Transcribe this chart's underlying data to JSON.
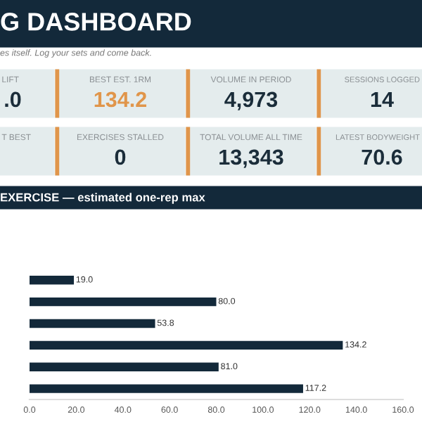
{
  "chart_data": [
    {
      "type": "other",
      "title": "G DASHBOARD",
      "subtitle": "es itself. Log your sets and come back.",
      "categories": [
        "LIFT",
        "BEST EST. 1RM",
        "VOLUME IN PERIOD",
        "SESSIONS LOGGED",
        "T BEST",
        "EXERCISES STALLED",
        "TOTAL VOLUME ALL TIME",
        "LATEST BODYWEIGHT"
      ],
      "value_labels": [
        ".0",
        "134.2",
        "4,973",
        "14",
        null,
        "0",
        "13,343",
        "70.6"
      ],
      "colors": [
        "#1b2d3a",
        "#e0954a",
        "#1b2d3a",
        "#1b2d3a",
        "#1b2d3a",
        "#1b2d3a",
        "#1b2d3a",
        "#1b2d3a"
      ]
    },
    {
      "type": "bar",
      "orientation": "horizontal",
      "title": "EXERCISE — estimated one-rep max",
      "categories": [
        null,
        null,
        null,
        null,
        null,
        null
      ],
      "values": [
        19.0,
        80.0,
        53.8,
        134.2,
        81.0,
        117.2
      ],
      "color": "#13293a",
      "value_labels": [
        "19.0",
        "80.0",
        "53.8",
        "134.2",
        "81.0",
        "117.2"
      ],
      "xlim": [
        0,
        160
      ],
      "xticks": [
        {
          "value": 0,
          "label": "0.0"
        },
        {
          "value": 20,
          "label": "20.0"
        },
        {
          "value": 40,
          "label": "40.0"
        },
        {
          "value": 60,
          "label": "60.0"
        },
        {
          "value": 80,
          "label": "80.0"
        },
        {
          "value": 100,
          "label": "100.0"
        },
        {
          "value": 120,
          "label": "120.0"
        },
        {
          "value": 140,
          "label": "140.0"
        },
        {
          "value": 160,
          "label": "160.0"
        }
      ],
      "grid": false
    }
  ]
}
